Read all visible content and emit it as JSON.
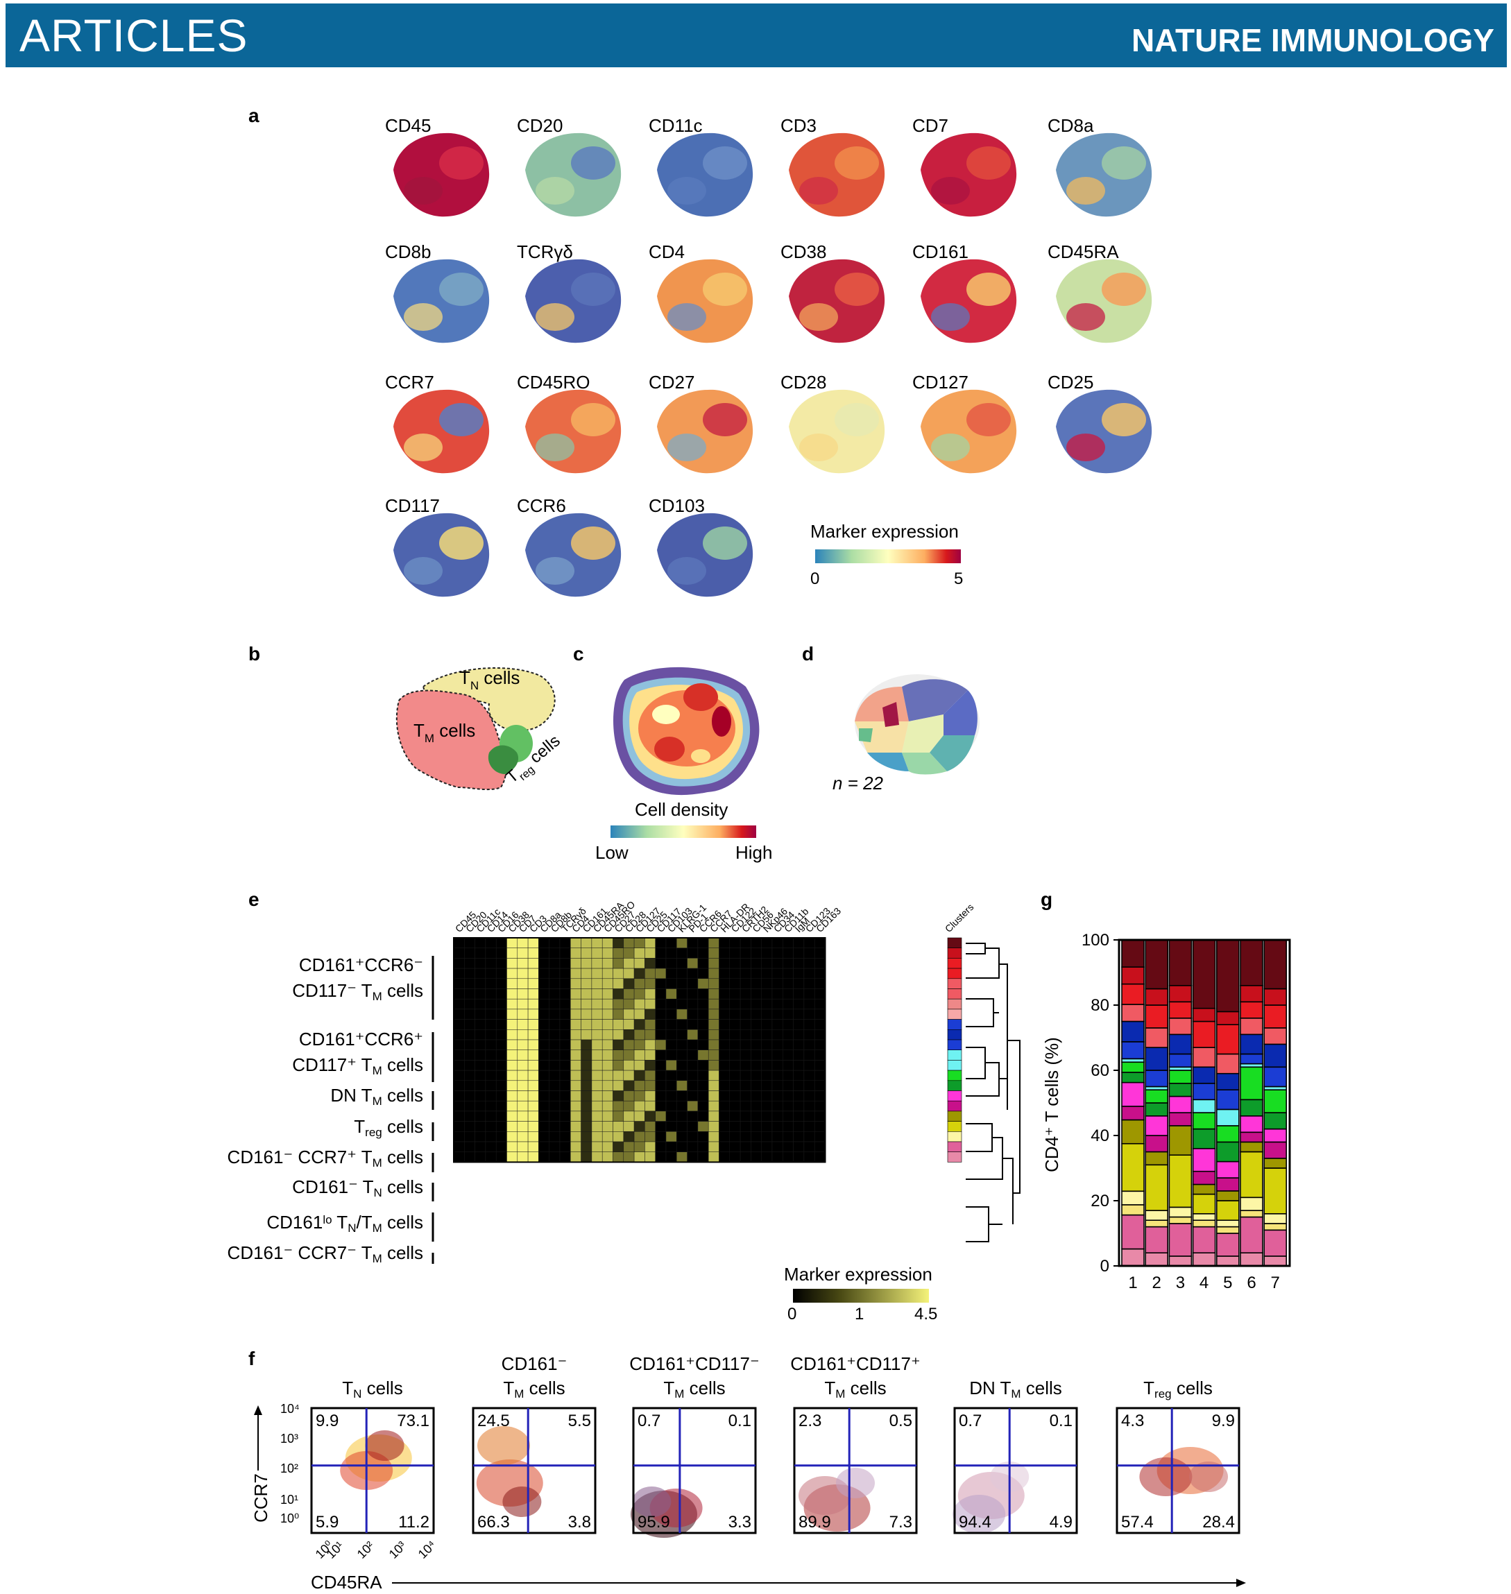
{
  "header": {
    "section": "ARTICLES",
    "journal": "NATURE IMMUNOLOGY"
  },
  "panel_letters": {
    "a": "a",
    "b": "b",
    "c": "c",
    "d": "d",
    "e": "e",
    "f": "f",
    "g": "g"
  },
  "panel_a": {
    "markers": [
      "CD45",
      "CD20",
      "CD11c",
      "CD3",
      "CD7",
      "CD8a",
      "CD8b",
      "TCRγδ",
      "CD4",
      "CD38",
      "CD161",
      "CD45RA",
      "CCR7",
      "CD45RO",
      "CD27",
      "CD28",
      "CD127",
      "CD25",
      "CD117",
      "CCR6",
      "CD103"
    ],
    "legend_title": "Marker expression",
    "legend_min": "0",
    "legend_max": "5"
  },
  "panel_b": {
    "labels": [
      "T",
      "N",
      " cells",
      "T",
      "M",
      " cells",
      "T",
      "reg",
      " cells"
    ]
  },
  "panel_c": {
    "legend_title": "Cell density",
    "low": "Low",
    "high": "High"
  },
  "panel_d": {
    "n_label": "n = 22"
  },
  "panel_e": {
    "columns": [
      "CD45",
      "CD20",
      "CD11c",
      "CD14",
      "CD16",
      "CD38",
      "CD7",
      "CD3",
      "CD8a",
      "CD8b",
      "TCRγδ",
      "CD4",
      "CD161",
      "CD45RA",
      "CD45RO",
      "CD27",
      "CD28",
      "CD127",
      "CD25",
      "CD117",
      "CD103",
      "KLRG-1",
      "PD-1",
      "CCR6",
      "CCR7",
      "HLA-DR",
      "CD122",
      "CRTH2",
      "CD56",
      "NKp46",
      "CD34",
      "CD11b",
      "IgM",
      "CD123",
      "CD163",
      "Clusters"
    ],
    "row_labels": [
      "CD161⁺CCR6⁻",
      "CD117⁻ T",
      "M",
      " cells",
      "CD161⁺CCR6⁺",
      "CD117⁺ T",
      "M",
      " cells",
      "DN T",
      "M",
      " cells",
      "T",
      "reg",
      " cells",
      "CD161⁻ CCR7⁺ T",
      "M",
      " cells",
      "CD161⁻ T",
      "N",
      " cells",
      "CD161",
      "lo",
      " T",
      "N",
      "/T",
      "M",
      " cells",
      "CD161⁻ CCR7⁻ T",
      "M",
      " cells"
    ],
    "legend_title": "Marker expression",
    "legend_ticks": [
      "0",
      "1",
      "4.5"
    ]
  },
  "panel_f": {
    "titles": [
      [
        "T",
        "N",
        " cells"
      ],
      [
        "CD161⁻",
        "T",
        "M",
        " cells"
      ],
      [
        "CD161⁺CD117⁻",
        "T",
        "M",
        " cells"
      ],
      [
        "CD161⁺CD117⁺",
        "T",
        "M",
        " cells"
      ],
      [
        "DN T",
        "M",
        " cells"
      ],
      [
        "T",
        "reg",
        " cells"
      ]
    ],
    "quadrants": [
      [
        "9.9",
        "73.1",
        "5.9",
        "11.2"
      ],
      [
        "24.5",
        "5.5",
        "66.3",
        "3.8"
      ],
      [
        "0.7",
        "0.1",
        "95.9",
        "3.3"
      ],
      [
        "2.3",
        "0.5",
        "89.9",
        "7.3"
      ],
      [
        "0.7",
        "0.1",
        "94.4",
        "4.9"
      ],
      [
        "4.3",
        "9.9",
        "57.4",
        "28.4"
      ]
    ],
    "y_label": "CCR7",
    "x_label": "CD45RA",
    "y_ticks": [
      "10⁴",
      "10³",
      "10²",
      "10¹",
      "10⁰"
    ],
    "x_ticks": [
      "10⁰",
      "10¹",
      "10²",
      "10³",
      "10⁴"
    ]
  },
  "chart_data": {
    "type": "bar",
    "categories": [
      "1",
      "2",
      "3",
      "4",
      "5",
      "6",
      "7"
    ],
    "ylabel": "CD4⁺ T cells (%)",
    "ylim": [
      0,
      100
    ],
    "yticks": [
      0,
      20,
      40,
      60,
      80,
      100
    ],
    "series": [
      {
        "color": "#e889a8",
        "values": [
          5,
          4,
          3,
          4,
          3,
          4,
          3
        ]
      },
      {
        "color": "#e0609a",
        "values": [
          10,
          8,
          10,
          8,
          7,
          11,
          8
        ]
      },
      {
        "color": "#f6e47a",
        "values": [
          3,
          2,
          2,
          2,
          2,
          2,
          2
        ]
      },
      {
        "color": "#fdf6a6",
        "values": [
          4,
          3,
          3,
          2,
          2,
          4,
          3
        ]
      },
      {
        "color": "#d5d20b",
        "values": [
          14,
          14,
          16,
          6,
          6,
          14,
          14
        ]
      },
      {
        "color": "#9e9700",
        "values": [
          7,
          4,
          9,
          3,
          3,
          3,
          3
        ]
      },
      {
        "color": "#c8108a",
        "values": [
          4,
          5,
          4,
          4,
          4,
          3,
          5
        ]
      },
      {
        "color": "#ff36d8",
        "values": [
          7,
          6,
          5,
          7,
          5,
          5,
          4
        ]
      },
      {
        "color": "#0d9c2a",
        "values": [
          3,
          4,
          4,
          6,
          6,
          5,
          5
        ]
      },
      {
        "color": "#18dd22",
        "values": [
          3,
          4,
          4,
          5,
          5,
          10,
          7
        ]
      },
      {
        "color": "#6ff2f2",
        "values": [
          1,
          1,
          1,
          4,
          5,
          1,
          1
        ]
      },
      {
        "color": "#1b3dd4",
        "values": [
          5,
          5,
          4,
          5,
          6,
          3,
          6
        ]
      },
      {
        "color": "#0a2ab0",
        "values": [
          6,
          7,
          6,
          5,
          5,
          6,
          7
        ]
      },
      {
        "color": "#f05a63",
        "values": [
          5,
          6,
          5,
          6,
          6,
          5,
          5
        ]
      },
      {
        "color": "#ea1c23",
        "values": [
          6,
          7,
          5,
          8,
          9,
          5,
          7
        ]
      },
      {
        "color": "#c8101c",
        "values": [
          5,
          5,
          5,
          4,
          4,
          5,
          5
        ]
      },
      {
        "color": "#650a14",
        "values": [
          8,
          15,
          14,
          21,
          22,
          14,
          15
        ]
      }
    ]
  }
}
